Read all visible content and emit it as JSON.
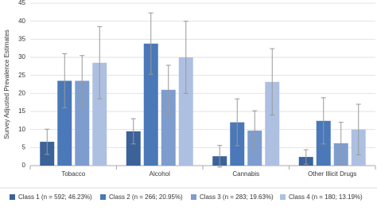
{
  "chart_data": {
    "type": "bar",
    "y_label": "Survey Adjusted Prevalence Estimates",
    "categories": [
      "Tobacco",
      "Alcohol",
      "Cannabis",
      "Other Illicit Drugs"
    ],
    "series": [
      {
        "name": "Class 1 (n = 592; 46.23%)",
        "color": "#3b6299",
        "values": [
          6.6,
          9.5,
          2.6,
          2.4
        ],
        "errors": [
          3.5,
          3.5,
          3.0,
          2.0
        ]
      },
      {
        "name": "Class 2 (n = 266; 20.95%)",
        "color": "#4a78b8",
        "values": [
          23.5,
          33.8,
          12.0,
          12.4
        ],
        "errors": [
          7.5,
          8.5,
          6.5,
          6.4
        ]
      },
      {
        "name": "Class 3 (n = 283; 19.63%)",
        "color": "#7e9dcf",
        "values": [
          23.5,
          21.0,
          9.7,
          6.2
        ],
        "errors": [
          7.0,
          6.8,
          5.5,
          5.8
        ]
      },
      {
        "name": "Class 4 (n = 180; 13.19%)",
        "color": "#adc0e2",
        "values": [
          28.5,
          30.0,
          23.2,
          10.0
        ],
        "errors": [
          10.0,
          10.0,
          9.2,
          7.0
        ]
      }
    ],
    "ylim": [
      0,
      45
    ],
    "yticks": [
      0,
      5,
      10,
      15,
      20,
      25,
      30,
      35,
      40,
      45
    ],
    "grid": true
  }
}
